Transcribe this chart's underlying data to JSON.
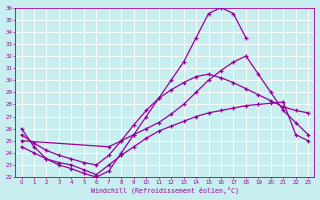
{
  "xlabel": "Windchill (Refroidissement éolien,°C)",
  "bg_color": "#c8eef0",
  "line_color": "#990099",
  "grid_color": "#ffffff",
  "xlim": [
    -0.5,
    23.5
  ],
  "ylim": [
    22,
    36
  ],
  "xticks": [
    0,
    1,
    2,
    3,
    4,
    5,
    6,
    7,
    8,
    9,
    10,
    11,
    12,
    13,
    14,
    15,
    16,
    17,
    18,
    19,
    20,
    21,
    22,
    23
  ],
  "yticks": [
    22,
    23,
    24,
    25,
    26,
    27,
    28,
    29,
    30,
    31,
    32,
    33,
    34,
    35,
    36
  ],
  "line1_x": [
    0,
    1,
    2,
    3,
    4,
    5,
    6,
    7,
    8,
    9,
    10,
    11,
    12,
    13,
    14,
    15,
    16,
    17,
    18
  ],
  "line1_y": [
    26.0,
    24.5,
    23.5,
    23.0,
    22.7,
    22.3,
    22.0,
    22.5,
    24.0,
    25.5,
    27.0,
    28.5,
    30.0,
    31.5,
    33.5,
    35.5,
    36.0,
    35.5,
    33.5
  ],
  "line2_x": [
    0,
    1,
    2,
    3,
    4,
    5,
    6,
    7,
    8,
    9,
    10,
    11,
    12,
    13,
    14,
    15,
    16,
    17,
    18,
    19,
    20,
    21,
    22,
    23
  ],
  "line2_y": [
    25.5,
    24.8,
    24.2,
    23.8,
    23.5,
    23.2,
    23.0,
    23.8,
    25.0,
    26.3,
    27.5,
    28.5,
    29.2,
    29.8,
    30.3,
    30.5,
    30.2,
    29.8,
    29.3,
    28.8,
    28.3,
    27.8,
    27.5,
    27.3
  ],
  "line3_x": [
    0,
    7,
    8,
    9,
    10,
    11,
    12,
    13,
    14,
    15,
    16,
    17,
    18,
    19,
    20,
    21,
    22,
    23
  ],
  "line3_y": [
    25.0,
    24.5,
    25.0,
    25.5,
    26.0,
    26.5,
    27.2,
    28.0,
    29.0,
    30.0,
    30.8,
    31.5,
    32.0,
    30.5,
    29.0,
    27.5,
    26.5,
    25.5
  ],
  "line4_x": [
    0,
    1,
    2,
    3,
    4,
    5,
    6,
    7,
    8,
    9,
    10,
    11,
    12,
    13,
    14,
    15,
    16,
    17,
    18,
    19,
    20,
    21,
    22,
    23
  ],
  "line4_y": [
    24.5,
    24.0,
    23.5,
    23.2,
    23.0,
    22.6,
    22.2,
    23.0,
    23.8,
    24.5,
    25.2,
    25.8,
    26.2,
    26.6,
    27.0,
    27.3,
    27.5,
    27.7,
    27.9,
    28.0,
    28.1,
    28.2,
    25.5,
    25.0
  ]
}
